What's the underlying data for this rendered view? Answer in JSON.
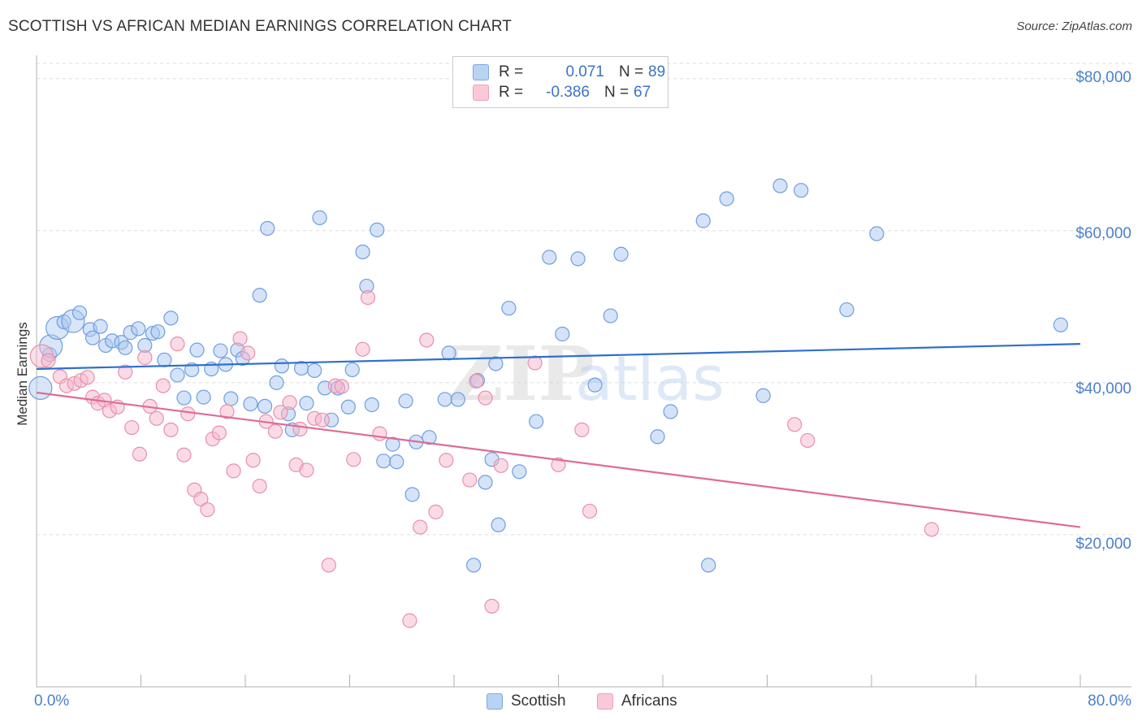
{
  "title": "SCOTTISH VS AFRICAN MEDIAN EARNINGS CORRELATION CHART",
  "source": "Source: ZipAtlas.com",
  "colors": {
    "scottish_fill": "#a9c8ef",
    "scottish_stroke": "#6f9ee0",
    "scottish_line": "#2e6fd0",
    "africans_fill": "#f6b8cb",
    "africans_stroke": "#e98fac",
    "africans_line": "#e06a95",
    "tick_label": "#4a7fd0",
    "grid": "#dddddd"
  },
  "legend": {
    "rows": [
      {
        "r_label": "R =",
        "r_value": "0.071",
        "n_label": "N =",
        "n_value": "89"
      },
      {
        "r_label": "R =",
        "r_value": "-0.386",
        "n_label": "N =",
        "n_value": "67"
      }
    ]
  },
  "bottom_legend": {
    "scottish": "Scottish",
    "africans": "Africans"
  },
  "watermark": {
    "zip": "ZIP",
    "atlas": "atlas"
  },
  "chart_data": {
    "type": "scatter",
    "title": "SCOTTISH VS AFRICAN MEDIAN EARNINGS CORRELATION CHART",
    "xlabel": "",
    "ylabel": "Median Earnings",
    "xlim": [
      0,
      80
    ],
    "ylim": [
      0,
      82000
    ],
    "x_tick_labels": [
      "0.0%",
      "80.0%"
    ],
    "y_ticks": [
      20000,
      40000,
      60000,
      80000
    ],
    "y_tick_labels": [
      "$20,000",
      "$40,000",
      "$60,000",
      "$80,000"
    ],
    "grid": true,
    "legend_position": "top-center",
    "series": [
      {
        "name": "Scottish",
        "r": 0.071,
        "n": 89,
        "trend": [
          [
            0,
            41800
          ],
          [
            80,
            45100
          ]
        ],
        "points": [
          [
            0.3,
            39300
          ],
          [
            1.0,
            43700
          ],
          [
            1.1,
            44800
          ],
          [
            1.6,
            47200
          ],
          [
            2.1,
            48000
          ],
          [
            2.8,
            48100
          ],
          [
            3.3,
            49200
          ],
          [
            4.1,
            47000
          ],
          [
            4.3,
            45900
          ],
          [
            4.9,
            47400
          ],
          [
            5.3,
            44900
          ],
          [
            5.8,
            45500
          ],
          [
            6.5,
            45300
          ],
          [
            6.8,
            44600
          ],
          [
            7.2,
            46600
          ],
          [
            7.8,
            47100
          ],
          [
            8.3,
            44900
          ],
          [
            8.9,
            46500
          ],
          [
            9.3,
            46700
          ],
          [
            9.8,
            43000
          ],
          [
            10.3,
            48500
          ],
          [
            10.8,
            41000
          ],
          [
            11.3,
            38000
          ],
          [
            11.9,
            41700
          ],
          [
            12.3,
            44300
          ],
          [
            12.8,
            38100
          ],
          [
            13.4,
            41800
          ],
          [
            14.1,
            44200
          ],
          [
            14.5,
            42400
          ],
          [
            14.9,
            37900
          ],
          [
            15.4,
            44300
          ],
          [
            15.8,
            43200
          ],
          [
            16.4,
            37200
          ],
          [
            17.1,
            51500
          ],
          [
            17.5,
            36900
          ],
          [
            17.7,
            60300
          ],
          [
            18.4,
            40000
          ],
          [
            18.8,
            42200
          ],
          [
            19.3,
            35900
          ],
          [
            19.6,
            33800
          ],
          [
            20.3,
            41900
          ],
          [
            20.7,
            37300
          ],
          [
            21.3,
            41600
          ],
          [
            21.7,
            61700
          ],
          [
            22.1,
            39300
          ],
          [
            22.6,
            35100
          ],
          [
            23.1,
            39300
          ],
          [
            23.9,
            36800
          ],
          [
            24.2,
            41700
          ],
          [
            25.0,
            57200
          ],
          [
            25.3,
            52700
          ],
          [
            25.7,
            37100
          ],
          [
            26.1,
            60100
          ],
          [
            26.6,
            29700
          ],
          [
            27.3,
            31900
          ],
          [
            27.6,
            29600
          ],
          [
            28.3,
            37600
          ],
          [
            28.8,
            25300
          ],
          [
            29.1,
            32200
          ],
          [
            30.1,
            32800
          ],
          [
            31.3,
            37800
          ],
          [
            31.6,
            43900
          ],
          [
            32.3,
            37800
          ],
          [
            33.5,
            16000
          ],
          [
            33.8,
            40300
          ],
          [
            34.4,
            26900
          ],
          [
            34.9,
            29900
          ],
          [
            35.2,
            42500
          ],
          [
            35.4,
            21300
          ],
          [
            36.2,
            49800
          ],
          [
            37.0,
            28300
          ],
          [
            38.3,
            34900
          ],
          [
            39.3,
            56500
          ],
          [
            40.3,
            46400
          ],
          [
            41.5,
            56300
          ],
          [
            42.8,
            39700
          ],
          [
            44.0,
            48800
          ],
          [
            44.8,
            56900
          ],
          [
            47.6,
            32900
          ],
          [
            48.6,
            36200
          ],
          [
            51.1,
            61300
          ],
          [
            51.5,
            16000
          ],
          [
            52.9,
            64200
          ],
          [
            55.7,
            38300
          ],
          [
            57.0,
            65900
          ],
          [
            58.6,
            65300
          ],
          [
            62.1,
            49600
          ],
          [
            64.4,
            59600
          ],
          [
            78.5,
            47600
          ]
        ],
        "large_points": [
          [
            0.3,
            39300
          ],
          [
            1.1,
            44800
          ],
          [
            1.6,
            47200
          ],
          [
            2.8,
            48100
          ]
        ]
      },
      {
        "name": "Africans",
        "r": -0.386,
        "n": 67,
        "trend": [
          [
            0,
            38700
          ],
          [
            80,
            21000
          ]
        ],
        "points": [
          [
            0.4,
            43500
          ],
          [
            0.9,
            42900
          ],
          [
            1.8,
            40800
          ],
          [
            2.3,
            39600
          ],
          [
            2.9,
            39900
          ],
          [
            3.4,
            40300
          ],
          [
            3.9,
            40700
          ],
          [
            4.3,
            38100
          ],
          [
            4.7,
            37300
          ],
          [
            5.2,
            37700
          ],
          [
            5.6,
            36300
          ],
          [
            6.2,
            36800
          ],
          [
            6.8,
            41400
          ],
          [
            7.3,
            34100
          ],
          [
            7.9,
            30600
          ],
          [
            8.3,
            43300
          ],
          [
            8.7,
            36900
          ],
          [
            9.2,
            35300
          ],
          [
            9.7,
            39600
          ],
          [
            10.3,
            33800
          ],
          [
            10.8,
            45100
          ],
          [
            11.3,
            30500
          ],
          [
            11.6,
            35900
          ],
          [
            12.1,
            25900
          ],
          [
            12.6,
            24700
          ],
          [
            13.1,
            23300
          ],
          [
            13.5,
            32600
          ],
          [
            14.0,
            33400
          ],
          [
            14.6,
            36200
          ],
          [
            15.1,
            28400
          ],
          [
            15.6,
            45800
          ],
          [
            16.2,
            43900
          ],
          [
            16.6,
            29800
          ],
          [
            17.1,
            26400
          ],
          [
            17.6,
            34900
          ],
          [
            18.3,
            33600
          ],
          [
            18.7,
            36100
          ],
          [
            19.4,
            37400
          ],
          [
            19.9,
            29200
          ],
          [
            20.2,
            33900
          ],
          [
            20.7,
            28500
          ],
          [
            21.3,
            35300
          ],
          [
            21.9,
            35100
          ],
          [
            22.4,
            16000
          ],
          [
            22.9,
            39600
          ],
          [
            23.4,
            39500
          ],
          [
            24.3,
            29900
          ],
          [
            25.0,
            44400
          ],
          [
            25.4,
            51200
          ],
          [
            26.3,
            33300
          ],
          [
            28.6,
            8700
          ],
          [
            29.4,
            21000
          ],
          [
            29.9,
            45600
          ],
          [
            30.6,
            23000
          ],
          [
            31.4,
            29800
          ],
          [
            33.2,
            27200
          ],
          [
            33.7,
            40200
          ],
          [
            34.4,
            38000
          ],
          [
            34.9,
            10600
          ],
          [
            35.6,
            29100
          ],
          [
            38.2,
            42600
          ],
          [
            40.0,
            29200
          ],
          [
            41.8,
            33800
          ],
          [
            42.4,
            23100
          ],
          [
            58.1,
            34500
          ],
          [
            59.1,
            32400
          ],
          [
            68.6,
            20700
          ]
        ],
        "large_points": [
          [
            0.4,
            43500
          ]
        ]
      }
    ]
  }
}
